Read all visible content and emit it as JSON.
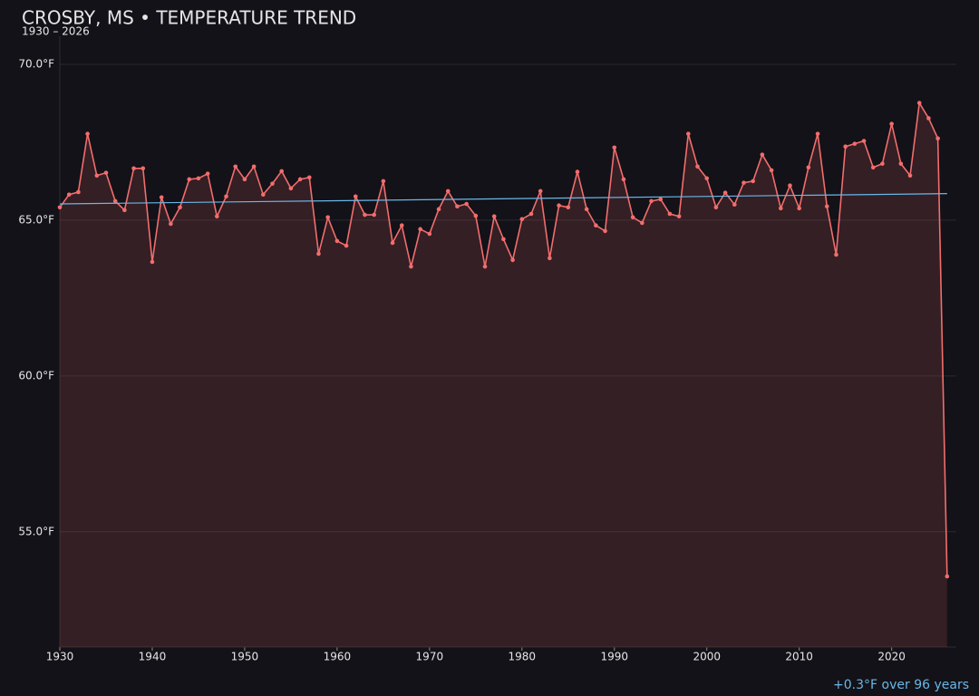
{
  "chart_data": {
    "type": "line",
    "title": "CROSBY, MS • TEMPERATURE TREND",
    "subtitle": "1930 – 2026",
    "annotation": "+0.3°F over 96 years",
    "x": [
      1930,
      1931,
      1932,
      1933,
      1934,
      1935,
      1936,
      1937,
      1938,
      1939,
      1940,
      1941,
      1942,
      1943,
      1944,
      1945,
      1946,
      1947,
      1948,
      1949,
      1950,
      1951,
      1952,
      1953,
      1954,
      1955,
      1956,
      1957,
      1958,
      1959,
      1960,
      1961,
      1962,
      1963,
      1964,
      1965,
      1966,
      1967,
      1968,
      1969,
      1970,
      1971,
      1972,
      1973,
      1974,
      1975,
      1976,
      1977,
      1978,
      1979,
      1980,
      1981,
      1982,
      1983,
      1984,
      1985,
      1986,
      1987,
      1988,
      1989,
      1990,
      1991,
      1992,
      1993,
      1994,
      1995,
      1996,
      1997,
      1998,
      1999,
      2000,
      2001,
      2002,
      2003,
      2004,
      2005,
      2006,
      2007,
      2008,
      2009,
      2010,
      2011,
      2012,
      2013,
      2014,
      2015,
      2016,
      2017,
      2018,
      2019,
      2020,
      2021,
      2022,
      2023,
      2024,
      2025,
      2026
    ],
    "series": [
      {
        "color": "#f26d6d",
        "values": [
          65.41,
          65.82,
          65.9,
          67.77,
          66.43,
          66.52,
          65.61,
          65.32,
          66.66,
          66.66,
          63.66,
          65.73,
          64.88,
          65.41,
          66.31,
          66.34,
          66.49,
          65.12,
          65.76,
          66.72,
          66.31,
          66.72,
          65.82,
          66.17,
          66.57,
          66.02,
          66.31,
          66.37,
          63.92,
          65.09,
          64.33,
          64.18,
          65.76,
          65.17,
          65.17,
          66.25,
          64.27,
          64.83,
          63.51,
          64.71,
          64.56,
          65.35,
          65.93,
          65.44,
          65.52,
          65.14,
          63.51,
          65.12,
          64.39,
          63.72,
          65.03,
          65.2,
          65.93,
          63.78,
          65.47,
          65.41,
          66.55,
          65.35,
          64.83,
          64.65,
          67.33,
          66.31,
          65.09,
          64.91,
          65.61,
          65.67,
          65.2,
          65.12,
          67.77,
          66.72,
          66.34,
          65.41,
          65.88,
          65.5,
          66.2,
          66.25,
          67.1,
          66.6,
          65.38,
          66.11,
          65.38,
          66.69,
          67.77,
          65.44,
          63.89,
          67.36,
          67.45,
          67.54,
          66.69,
          66.81,
          68.09,
          66.81,
          66.43,
          68.76,
          68.27,
          67.62,
          53.57
        ]
      }
    ],
    "trend": {
      "color": "#6ab7e8",
      "x": [
        1930,
        2026
      ],
      "values": [
        65.52,
        65.85
      ]
    },
    "xlim": [
      1930,
      2027
    ],
    "ylim": [
      51.3,
      70.9
    ],
    "xticks": [
      1930,
      1940,
      1950,
      1960,
      1970,
      1980,
      1990,
      2000,
      2010,
      2020
    ],
    "yticks": [
      {
        "value": 55,
        "label": "55.0°F"
      },
      {
        "value": 60,
        "label": "60.0°F"
      },
      {
        "value": 65,
        "label": "65.0°F"
      },
      {
        "value": 70,
        "label": "70.0°F"
      }
    ],
    "grid": true
  }
}
